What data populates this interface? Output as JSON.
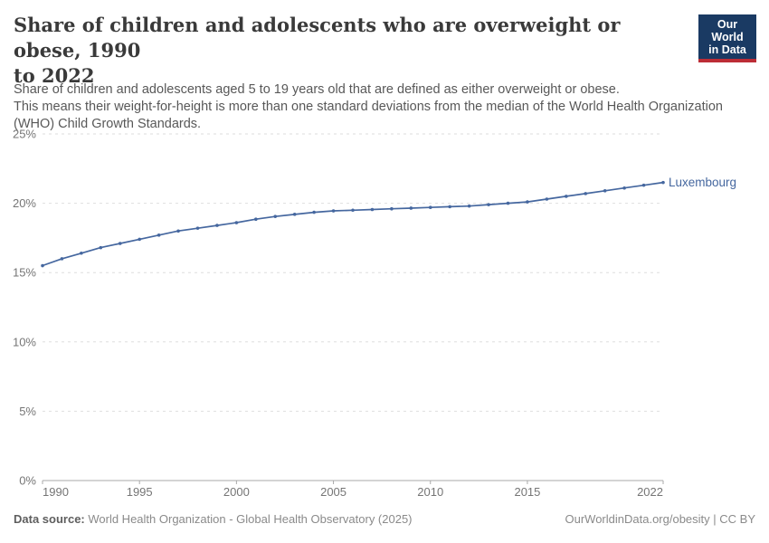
{
  "header": {
    "title_line1": "Share of children and adolescents who are overweight or obese, 1990",
    "title_line2": "to 2022",
    "logo": {
      "line1": "Our World",
      "line2": "in Data"
    }
  },
  "subtitle": {
    "line1": "Share of children and adolescents aged 5 to 19 years old that are defined as either overweight or obese.",
    "line2": "This means their weight-for-height is more than one standard deviations from the median of the World Health Organization (WHO) Child Growth Standards."
  },
  "chart_data": {
    "type": "line",
    "title": "Share of children and adolescents who are overweight or obese, 1990 to 2022",
    "x": [
      1990,
      1991,
      1992,
      1993,
      1994,
      1995,
      1996,
      1997,
      1998,
      1999,
      2000,
      2001,
      2002,
      2003,
      2004,
      2005,
      2006,
      2007,
      2008,
      2009,
      2010,
      2011,
      2012,
      2013,
      2014,
      2015,
      2016,
      2017,
      2018,
      2019,
      2020,
      2021,
      2022
    ],
    "series": [
      {
        "name": "Luxembourg",
        "values": [
          15.5,
          16.0,
          16.4,
          16.8,
          17.1,
          17.4,
          17.7,
          18.0,
          18.2,
          18.4,
          18.6,
          18.85,
          19.05,
          19.2,
          19.35,
          19.45,
          19.5,
          19.55,
          19.6,
          19.65,
          19.7,
          19.75,
          19.8,
          19.9,
          20.0,
          20.1,
          20.3,
          20.5,
          20.7,
          20.9,
          21.1,
          21.3,
          21.5
        ]
      }
    ],
    "ylabel": "",
    "xlabel": "",
    "ylim": [
      0,
      25
    ],
    "y_ticks": [
      0,
      5,
      10,
      15,
      20,
      25
    ],
    "y_tick_suffix": "%",
    "x_ticks": [
      1990,
      1995,
      2000,
      2005,
      2010,
      2015,
      2022
    ],
    "grid": "horizontal-dashed",
    "legend_position": "end-of-line-label",
    "marker": "dot"
  },
  "footer": {
    "datasource_label": "Data source:",
    "datasource_text": " World Health Organization - Global Health Observatory (2025)",
    "credit": "OurWorldinData.org/obesity | CC BY"
  },
  "colors": {
    "series_blue": "#45679f",
    "grid": "#dedede",
    "axis": "#a9a9a9",
    "tick_label": "#757575",
    "title_text": "#3a3a3a",
    "subtitle_text": "#585858",
    "logo_bg": "#1a3a63",
    "logo_red": "#bc2d36"
  }
}
